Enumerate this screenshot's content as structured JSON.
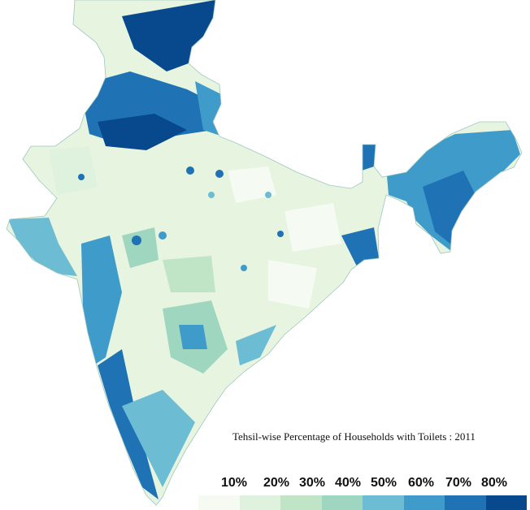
{
  "title": "Tehsil-wise Percentage of Households with Toilets : 2011",
  "legend": {
    "labels": [
      "10%",
      "20%",
      "30%",
      "40%",
      "50%",
      "60%",
      "70%",
      "80%"
    ],
    "colors": [
      "#f5fbf2",
      "#dff2dd",
      "#bfe5c6",
      "#9fd6c0",
      "#6cbcd3",
      "#3f9bca",
      "#1f72b4",
      "#08488c"
    ]
  },
  "map_colors": {
    "ocean": "#ffffff",
    "disputed_region": "#d0d0d0",
    "tehsil_border": "#ffffff"
  }
}
